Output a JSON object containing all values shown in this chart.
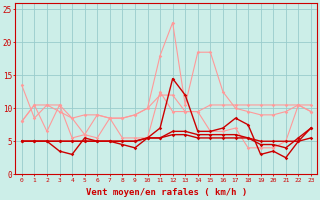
{
  "x": [
    0,
    1,
    2,
    3,
    4,
    5,
    6,
    7,
    8,
    9,
    10,
    11,
    12,
    13,
    14,
    15,
    16,
    17,
    18,
    19,
    20,
    21,
    22,
    23
  ],
  "line_dark1": [
    5.0,
    5.0,
    5.0,
    3.5,
    3.0,
    5.5,
    5.0,
    5.0,
    4.5,
    4.0,
    5.5,
    7.0,
    14.5,
    12.0,
    6.5,
    6.5,
    7.0,
    8.5,
    7.5,
    3.0,
    3.5,
    2.5,
    5.0,
    7.0
  ],
  "line_dark2": [
    5.0,
    5.0,
    5.0,
    5.0,
    5.0,
    5.0,
    5.0,
    5.0,
    5.0,
    5.0,
    5.5,
    5.5,
    6.0,
    6.0,
    5.5,
    5.5,
    5.5,
    5.5,
    5.5,
    5.0,
    5.0,
    5.0,
    5.0,
    5.5
  ],
  "line_dark3": [
    5.0,
    5.0,
    5.0,
    5.0,
    5.0,
    5.0,
    5.0,
    5.0,
    5.0,
    5.0,
    5.5,
    5.5,
    6.5,
    6.5,
    6.0,
    6.0,
    6.0,
    6.0,
    5.5,
    4.5,
    4.5,
    4.0,
    5.5,
    7.0
  ],
  "line_pink1": [
    13.5,
    8.5,
    10.5,
    10.5,
    8.5,
    9.0,
    9.0,
    8.5,
    8.5,
    9.0,
    10.0,
    18.0,
    23.0,
    10.5,
    18.5,
    18.5,
    12.5,
    10.0,
    9.5,
    9.0,
    9.0,
    9.5,
    10.5,
    9.5
  ],
  "line_pink2": [
    8.0,
    10.5,
    10.5,
    9.5,
    8.5,
    6.0,
    9.0,
    8.5,
    8.5,
    9.0,
    10.0,
    12.0,
    12.0,
    9.5,
    9.5,
    10.5,
    10.5,
    10.5,
    10.5,
    10.5,
    10.5,
    10.5,
    10.5,
    10.5
  ],
  "line_pink3": [
    8.0,
    10.5,
    6.5,
    10.5,
    5.5,
    6.0,
    5.5,
    8.5,
    5.5,
    5.5,
    5.5,
    12.5,
    9.5,
    9.5,
    9.5,
    6.5,
    6.5,
    7.0,
    4.0,
    4.0,
    4.0,
    5.0,
    10.5,
    9.5
  ],
  "color_dark": "#cc0000",
  "color_pink": "#ff9999",
  "xlabel": "Vent moyen/en rafales ( km/h )",
  "ylim": [
    0,
    26
  ],
  "yticks": [
    0,
    5,
    10,
    15,
    20,
    25
  ],
  "bg_color": "#cceee8",
  "grid_color": "#99cccc"
}
